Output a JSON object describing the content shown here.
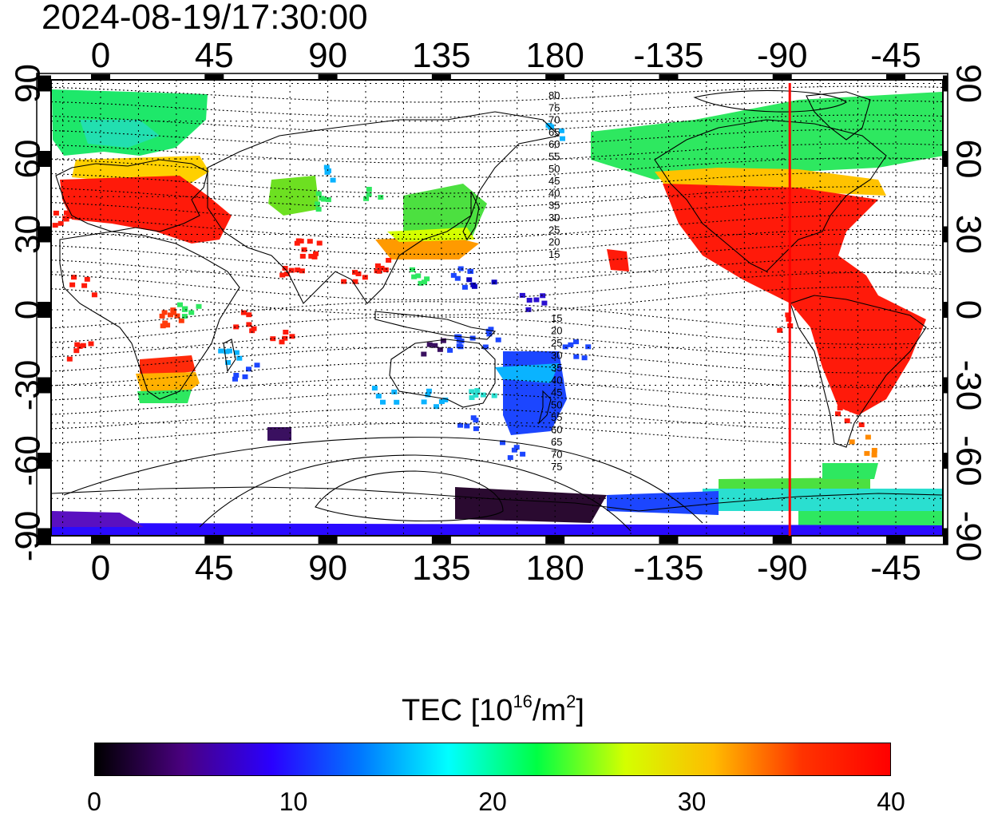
{
  "timestamp": "2024-08-19/17:30:00",
  "map": {
    "top_lon_labels": [
      "0",
      "45",
      "90",
      "135",
      "180",
      "-135",
      "-90",
      "-45"
    ],
    "bottom_lon_labels": [
      "0",
      "45",
      "90",
      "135",
      "180",
      "-135",
      "-90",
      "-45"
    ],
    "left_lat_labels": [
      "90",
      "60",
      "30",
      "0",
      "-30",
      "-60",
      "-90"
    ],
    "right_lat_labels": [
      "90",
      "60",
      "30",
      "0",
      "-30",
      "-60",
      "-90"
    ],
    "contour_labels_north": [
      "80",
      "75",
      "70",
      "65",
      "60",
      "55",
      "50",
      "45",
      "40",
      "35",
      "30",
      "25",
      "20",
      "15"
    ],
    "contour_labels_south": [
      "15",
      "20",
      "25",
      "30",
      "35",
      "40",
      "45",
      "50",
      "55",
      "60",
      "65",
      "70",
      "75"
    ],
    "meridian_line_lon": -87,
    "meridian_line_color": "#ff0000"
  },
  "colorbar": {
    "title_main": "TEC  [10",
    "title_exp1": "16",
    "title_mid": "/m",
    "title_exp2": "2",
    "title_end": "]",
    "tick_labels": [
      "0",
      "10",
      "20",
      "30",
      "40"
    ],
    "min": 0,
    "max": 40,
    "colors": [
      "#000000",
      "#4a0080",
      "#2a00ff",
      "#0077ff",
      "#00ffff",
      "#00ff44",
      "#d4ff00",
      "#ffbb00",
      "#ff3300",
      "#ff0000"
    ]
  }
}
